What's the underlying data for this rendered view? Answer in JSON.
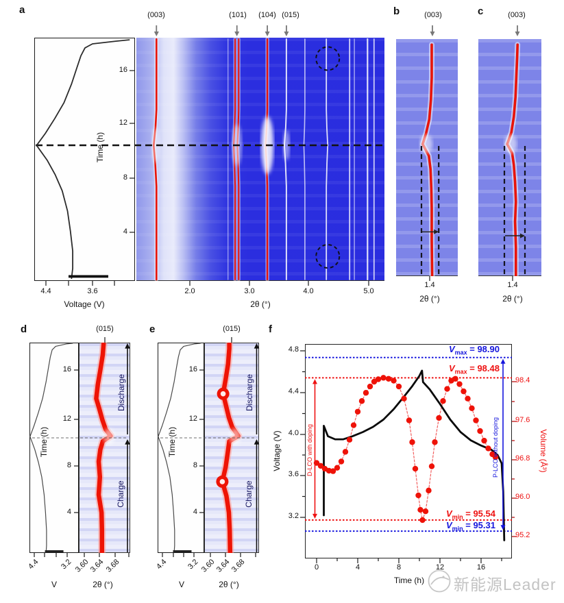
{
  "figure": {
    "panels": {
      "a": {
        "label": "a",
        "peaks": [
          "(003)",
          "(101)",
          "(104)",
          "(015)"
        ],
        "time_ticks": [
          "16",
          "12",
          "8",
          "4"
        ],
        "time_label": "Time (h)",
        "volt_ticks": [
          "4.4",
          "3.6"
        ],
        "volt_label": "Voltage (V)",
        "theta_ticks": [
          "2.0",
          "3.0",
          "4.0",
          "5.0"
        ],
        "theta_label": "2θ (°)"
      },
      "b": {
        "label": "b",
        "peak": "(003)",
        "theta_tick": "1.4",
        "theta_label": "2θ (°)"
      },
      "c": {
        "label": "c",
        "peak": "(003)",
        "theta_tick": "1.4",
        "theta_label": "2θ (°)"
      },
      "d": {
        "label": "d",
        "peak": "(015)",
        "time_ticks": [
          "16",
          "12",
          "8",
          "4"
        ],
        "time_label": "Time (h)",
        "volt_ticks": [
          "4.4",
          "3.2"
        ],
        "volt_label": "V",
        "theta_ticks": [
          "3.60",
          "3.64",
          "3.68"
        ],
        "theta_label": "2θ (°)",
        "discharge": "Discharge",
        "charge": "Charge"
      },
      "e": {
        "label": "e",
        "peak": "(015)",
        "time_ticks": [
          "16",
          "12",
          "8",
          "4"
        ],
        "time_label": "Time (h)",
        "volt_ticks": [
          "4.4",
          "3.2"
        ],
        "volt_label": "V",
        "theta_ticks": [
          "3.60",
          "3.64",
          "3.68"
        ],
        "theta_label": "2θ (°)",
        "discharge": "Discharge",
        "charge": "Charge"
      },
      "f": {
        "label": "f",
        "voltage_ticks": [
          "4.8",
          "4.4",
          "4.0",
          "3.6",
          "3.2"
        ],
        "voltage_label": "Voltage (V)",
        "volume_ticks": [
          "98.4",
          "97.6",
          "96.8",
          "96.0",
          "95.2"
        ],
        "volume_label": "Volume (Å³)",
        "time_ticks": [
          "0",
          "4",
          "8",
          "12",
          "16"
        ],
        "time_label": "Time (h)",
        "ann_vmax_blue": {
          "v": "V",
          "sub": "max",
          "rest": " = 98.90"
        },
        "ann_vmax_red": {
          "v": "V",
          "sub": "max",
          "rest": " = 98.48"
        },
        "ann_vmin_red": {
          "v": "V",
          "sub": "min",
          "rest": " = 95.54"
        },
        "ann_vmin_blue": {
          "v": "V",
          "sub": "min",
          "rest": " = 95.31"
        },
        "arrow_label_red": "D-LCO with doping",
        "arrow_label_blue": "P-LCO without doping"
      }
    },
    "watermark": "新能源Leader",
    "colors": {
      "deep_blue": "#2a2ddf",
      "panel_blue": "#7d84e8",
      "pale_blue": "#edeefb",
      "peak_red": "#e81408",
      "ann_red": "#ee1111",
      "ann_blue": "#1515dd"
    }
  },
  "chart_data": {
    "a_voltage": {
      "type": "line",
      "xlabel": "Voltage (V)",
      "ylabel": "Time (h)",
      "x_ticks": [
        4.4,
        3.6
      ],
      "x_reversed": true,
      "y_ticks": [
        4,
        8,
        12,
        16
      ],
      "y_range_h": [
        0,
        18.4
      ],
      "profile_t_V": [
        [
          0.45,
          3.96
        ],
        [
          1.2,
          3.94
        ],
        [
          2.5,
          3.94
        ],
        [
          4,
          3.98
        ],
        [
          5.5,
          4.03
        ],
        [
          7,
          4.12
        ],
        [
          8.2,
          4.24
        ],
        [
          9.3,
          4.38
        ],
        [
          10.4,
          4.56
        ],
        [
          11.3,
          4.41
        ],
        [
          12.4,
          4.25
        ],
        [
          13.6,
          4.09
        ],
        [
          15,
          3.96
        ],
        [
          16.2,
          3.87
        ],
        [
          17.1,
          3.8
        ],
        [
          17.7,
          3.73
        ],
        [
          18,
          3.6
        ],
        [
          18.2,
          3.2
        ],
        [
          18.3,
          2.97
        ]
      ]
    },
    "a_heatmap": {
      "type": "heatmap",
      "xlabel": "2θ (°)",
      "x_ticks": [
        2.0,
        3.0,
        4.0,
        5.0
      ],
      "x_range": [
        1.1,
        5.25
      ],
      "time_range_h": [
        0,
        18.4
      ],
      "dashed_time_h": 10.4,
      "peak_labels_2theta": {
        "(003)": 1.44,
        "(101)": 2.79,
        "(104)": 3.3,
        "(015)": 3.62
      },
      "red_lines_2theta": [
        1.44,
        2.76,
        2.82,
        3.3
      ],
      "white_lines_2theta": [
        2.64,
        3.62,
        3.93,
        4.29,
        4.68,
        4.76,
        4.98,
        5.09
      ],
      "dashed_circles": [
        {
          "two_theta": 4.29,
          "time_h": 16.9
        },
        {
          "two_theta": 4.29,
          "time_h": 2.1
        }
      ]
    },
    "b": {
      "type": "heatmap",
      "peak": "(003)",
      "x_tick": 1.4,
      "trace_2theta_time": [
        [
          1.406,
          0
        ],
        [
          1.405,
          3
        ],
        [
          1.405,
          5.5
        ],
        [
          1.404,
          7
        ],
        [
          1.402,
          8.5
        ],
        [
          1.398,
          9.5
        ],
        [
          1.383,
          10.4
        ],
        [
          1.391,
          11.2
        ],
        [
          1.399,
          12.3
        ],
        [
          1.403,
          13.8
        ],
        [
          1.405,
          15.5
        ],
        [
          1.405,
          18
        ]
      ],
      "dashed_guides_2theta": [
        1.38,
        1.422
      ],
      "shift_arrow_time_h": 3.7
    },
    "c": {
      "type": "heatmap",
      "peak": "(003)",
      "x_tick": 1.4,
      "trace_2theta_time": [
        [
          1.408,
          0
        ],
        [
          1.408,
          2.5
        ],
        [
          1.406,
          4.5
        ],
        [
          1.408,
          6
        ],
        [
          1.406,
          7.5
        ],
        [
          1.403,
          8.8
        ],
        [
          1.399,
          9.7
        ],
        [
          1.387,
          10.4
        ],
        [
          1.397,
          11.3
        ],
        [
          1.403,
          12.5
        ],
        [
          1.407,
          14
        ],
        [
          1.409,
          15.5
        ],
        [
          1.411,
          17
        ],
        [
          1.412,
          18
        ]
      ],
      "dashed_guides_2theta": [
        1.38,
        1.43
      ],
      "shift_arrow_time_h": 3.4
    },
    "d": {
      "type": "heatmap",
      "peak": "(015)",
      "x_ticks": [
        3.6,
        3.64,
        3.68
      ],
      "dashed_time_h": 10.4,
      "regions": [
        "Charge",
        "Discharge"
      ],
      "trace_2theta_time": [
        [
          3.643,
          0.5
        ],
        [
          3.643,
          2.5
        ],
        [
          3.642,
          4
        ],
        [
          3.635,
          5.5
        ],
        [
          3.638,
          7
        ],
        [
          3.635,
          8.3
        ],
        [
          3.639,
          9.3
        ],
        [
          3.645,
          10
        ],
        [
          3.664,
          10.45
        ],
        [
          3.652,
          11
        ],
        [
          3.644,
          11.8
        ],
        [
          3.636,
          12.8
        ],
        [
          3.629,
          13.6
        ],
        [
          3.633,
          14.8
        ],
        [
          3.639,
          16
        ],
        [
          3.645,
          17.3
        ],
        [
          3.647,
          18.2
        ]
      ]
    },
    "e": {
      "type": "heatmap",
      "peak": "(015)",
      "x_ticks": [
        3.6,
        3.64,
        3.68
      ],
      "dashed_time_h": 10.4,
      "regions": [
        "Charge",
        "Discharge"
      ],
      "trace_2theta_time": [
        [
          3.648,
          0.5
        ],
        [
          3.647,
          2.5
        ],
        [
          3.645,
          4
        ],
        [
          3.639,
          5.4
        ],
        [
          3.629,
          6.6
        ],
        [
          3.637,
          7.8
        ],
        [
          3.642,
          9
        ],
        [
          3.646,
          10
        ],
        [
          3.668,
          10.45
        ],
        [
          3.653,
          11.2
        ],
        [
          3.645,
          12
        ],
        [
          3.638,
          13
        ],
        [
          3.631,
          14
        ],
        [
          3.637,
          15.2
        ],
        [
          3.643,
          16.5
        ],
        [
          3.646,
          17.8
        ],
        [
          3.646,
          18.2
        ]
      ],
      "bright_spots_2theta_time": [
        [
          3.629,
          6.6
        ],
        [
          3.631,
          14
        ]
      ]
    },
    "f": {
      "type": "line+scatter",
      "xlabel": "Time (h)",
      "x_ticks": [
        0,
        4,
        8,
        12,
        16
      ],
      "x_range": [
        -1.1,
        19
      ],
      "left_axis": {
        "label": "Voltage (V)",
        "ticks": [
          4.8,
          4.4,
          4.0,
          3.6,
          3.2
        ],
        "range": [
          2.73,
          4.87
        ]
      },
      "right_axis": {
        "label": "Volume (Å³)",
        "ticks": [
          98.4,
          97.6,
          96.8,
          96.0,
          95.2
        ],
        "range": [
          94.95,
          99.4
        ]
      },
      "series": [
        {
          "name": "Voltage",
          "style": "line",
          "color": "#0a0a0a",
          "points_t_V": [
            [
              0.7,
              3.22
            ],
            [
              0.7,
              4.08
            ],
            [
              1.1,
              3.98
            ],
            [
              1.8,
              3.95
            ],
            [
              2.6,
              3.95
            ],
            [
              3.5,
              3.98
            ],
            [
              4.5,
              4.02
            ],
            [
              5.5,
              4.07
            ],
            [
              6.5,
              4.14
            ],
            [
              7.5,
              4.24
            ],
            [
              8.5,
              4.36
            ],
            [
              9.3,
              4.46
            ],
            [
              10,
              4.56
            ],
            [
              10.25,
              4.61
            ],
            [
              10.35,
              4.5
            ],
            [
              11,
              4.43
            ],
            [
              12,
              4.29
            ],
            [
              13,
              4.14
            ],
            [
              14,
              4.02
            ],
            [
              15,
              3.94
            ],
            [
              16,
              3.89
            ],
            [
              17,
              3.85
            ],
            [
              17.6,
              3.8
            ],
            [
              18,
              3.72
            ],
            [
              18.15,
              3.45
            ],
            [
              18.25,
              2.98
            ]
          ]
        },
        {
          "name": "Volume",
          "style": "scatter",
          "color": "#ee1208",
          "points_t_vol": [
            [
              0,
              96.72
            ],
            [
              0.4,
              96.66
            ],
            [
              0.8,
              96.6
            ],
            [
              1.2,
              96.56
            ],
            [
              1.6,
              96.55
            ],
            [
              2,
              96.62
            ],
            [
              2.4,
              96.75
            ],
            [
              2.8,
              96.95
            ],
            [
              3.2,
              97.2
            ],
            [
              3.6,
              97.5
            ],
            [
              4,
              97.78
            ],
            [
              4.4,
              98
            ],
            [
              4.8,
              98.17
            ],
            [
              5.2,
              98.3
            ],
            [
              5.6,
              98.4
            ],
            [
              6,
              98.45
            ],
            [
              6.5,
              98.48
            ],
            [
              7,
              98.46
            ],
            [
              7.5,
              98.42
            ],
            [
              8,
              98.3
            ],
            [
              8.5,
              98.05
            ],
            [
              9,
              97.6
            ],
            [
              9.3,
              97.15
            ],
            [
              9.6,
              96.6
            ],
            [
              9.9,
              96.05
            ],
            [
              10.1,
              95.75
            ],
            [
              10.3,
              95.54
            ],
            [
              10.6,
              95.72
            ],
            [
              10.9,
              96.15
            ],
            [
              11.2,
              96.65
            ],
            [
              11.5,
              97.15
            ],
            [
              11.9,
              97.65
            ],
            [
              12.3,
              98
            ],
            [
              12.7,
              98.25
            ],
            [
              13.1,
              98.42
            ],
            [
              13.5,
              98.46
            ],
            [
              13.9,
              98.35
            ],
            [
              14.3,
              98.2
            ],
            [
              14.7,
              98.05
            ],
            [
              15.1,
              97.85
            ],
            [
              15.5,
              97.6
            ],
            [
              15.9,
              97.38
            ],
            [
              16.3,
              97.18
            ],
            [
              16.7,
              97.02
            ],
            [
              17.1,
              96.9
            ],
            [
              17.4,
              96.84
            ]
          ]
        }
      ],
      "hlines": [
        {
          "value": 98.9,
          "color": "#1515dd"
        },
        {
          "value": 98.48,
          "color": "#ee1111"
        },
        {
          "value": 95.54,
          "color": "#ee1111"
        },
        {
          "value": 95.31,
          "color": "#1515dd"
        }
      ],
      "vmax_without_doping": 98.9,
      "vmax_with_doping": 98.48,
      "vmin_with_doping": 95.54,
      "vmin_without_doping": 95.31
    }
  }
}
